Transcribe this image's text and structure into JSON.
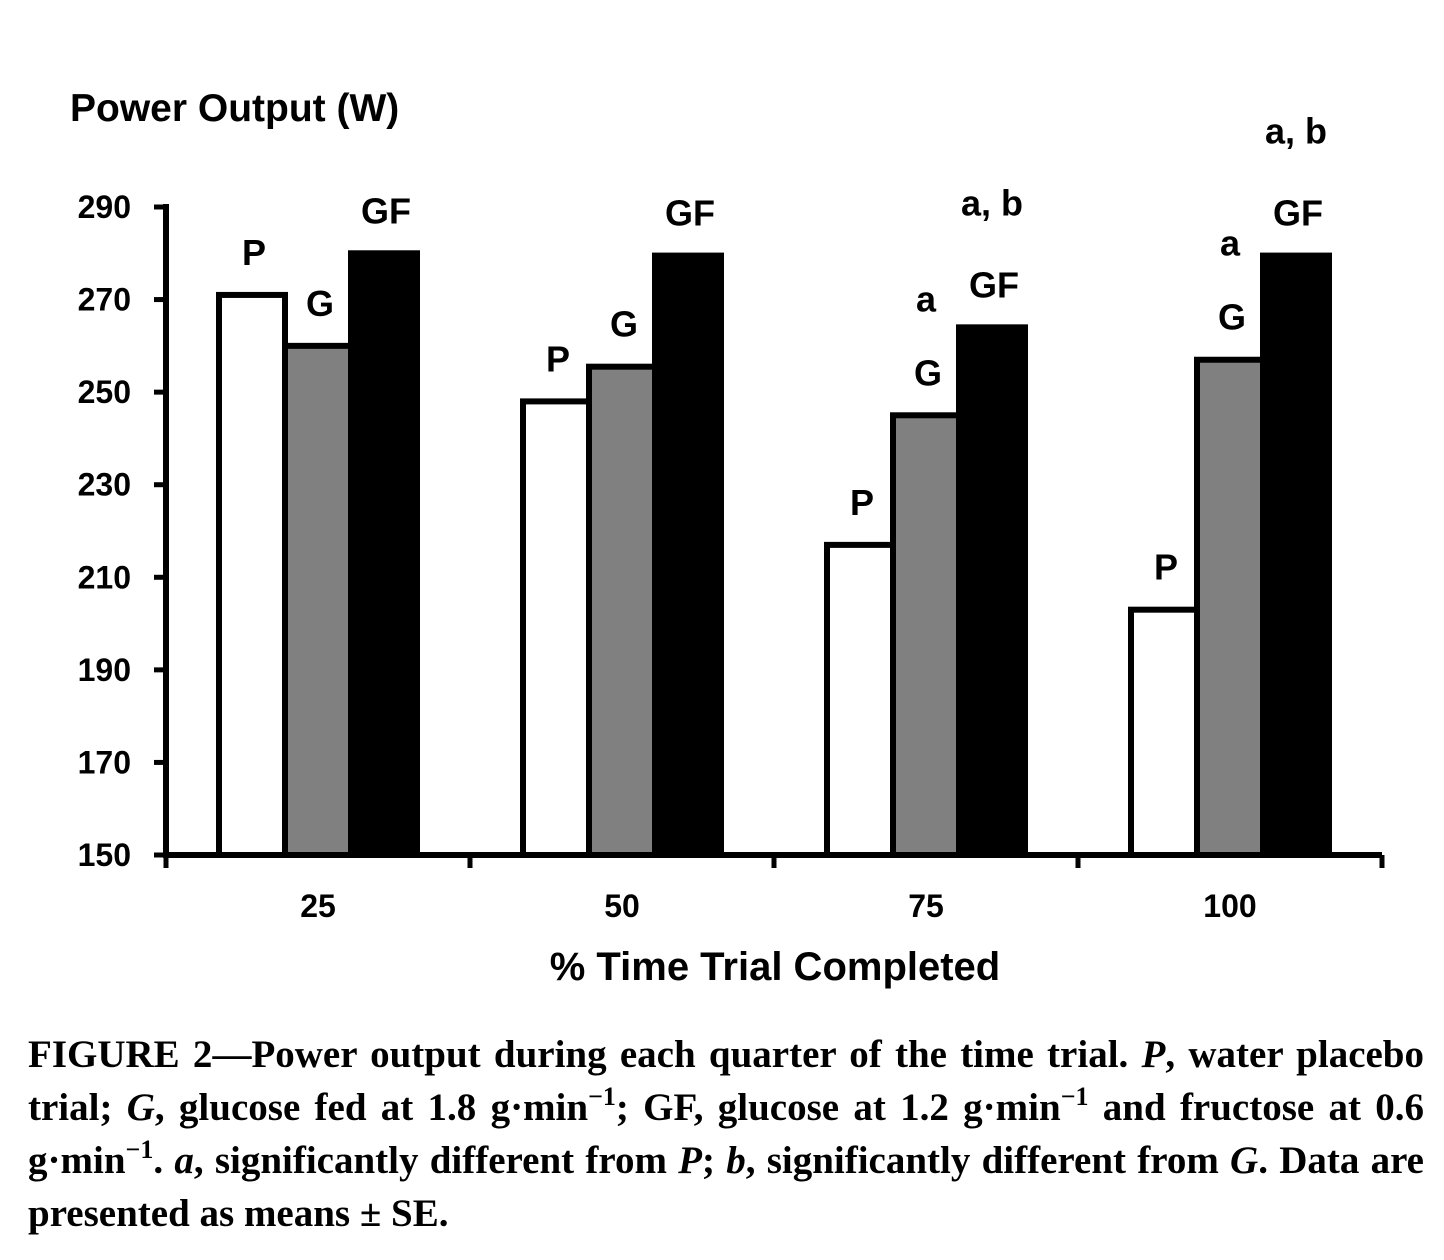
{
  "chart_data": {
    "type": "bar",
    "ylabel": "Power Output (W)",
    "xlabel": "% Time Trial Completed",
    "categories": [
      "25",
      "50",
      "75",
      "100"
    ],
    "ylim": [
      150,
      290
    ],
    "yticks": [
      "150",
      "170",
      "190",
      "210",
      "230",
      "250",
      "270",
      "290"
    ],
    "grid": false,
    "series": [
      {
        "name": "P",
        "color": "#ffffff",
        "values": [
          271,
          248,
          217,
          203
        ]
      },
      {
        "name": "G",
        "color": "#808080",
        "values": [
          260,
          255.5,
          245,
          257
        ]
      },
      {
        "name": "GF",
        "color": "#000000",
        "values": [
          280,
          279.5,
          264,
          279.5
        ]
      }
    ],
    "annotations": [
      {
        "category": "75",
        "series": "G",
        "text": "a"
      },
      {
        "category": "75",
        "series": "GF",
        "text": "a, b"
      },
      {
        "category": "100",
        "series": "G",
        "text": "a"
      },
      {
        "category": "100",
        "series": "GF",
        "text": "a, b"
      }
    ]
  },
  "caption": {
    "figure_label": "FIGURE 2",
    "dash": "—",
    "part1": "Power output during each quarter of the time trial. ",
    "p_abbr": "P",
    "part2": ", water placebo trial; ",
    "g_abbr": "G",
    "part3": ", glucose fed at 1.8 g·min",
    "exp1": "−1",
    "part4": "; GF, glucose at 1.2 g·min",
    "exp2": "−1",
    "part5": " and fructose at 0.6 g·min",
    "exp3": "−1",
    "part6": ". ",
    "a_abbr": "a",
    "part7": ", significantly different from ",
    "p_abbr2": "P",
    "part8": "; ",
    "b_abbr": "b",
    "part9": ", significantly different from ",
    "g_abbr2": "G",
    "part10": ". Data are presented as means ± SE."
  }
}
